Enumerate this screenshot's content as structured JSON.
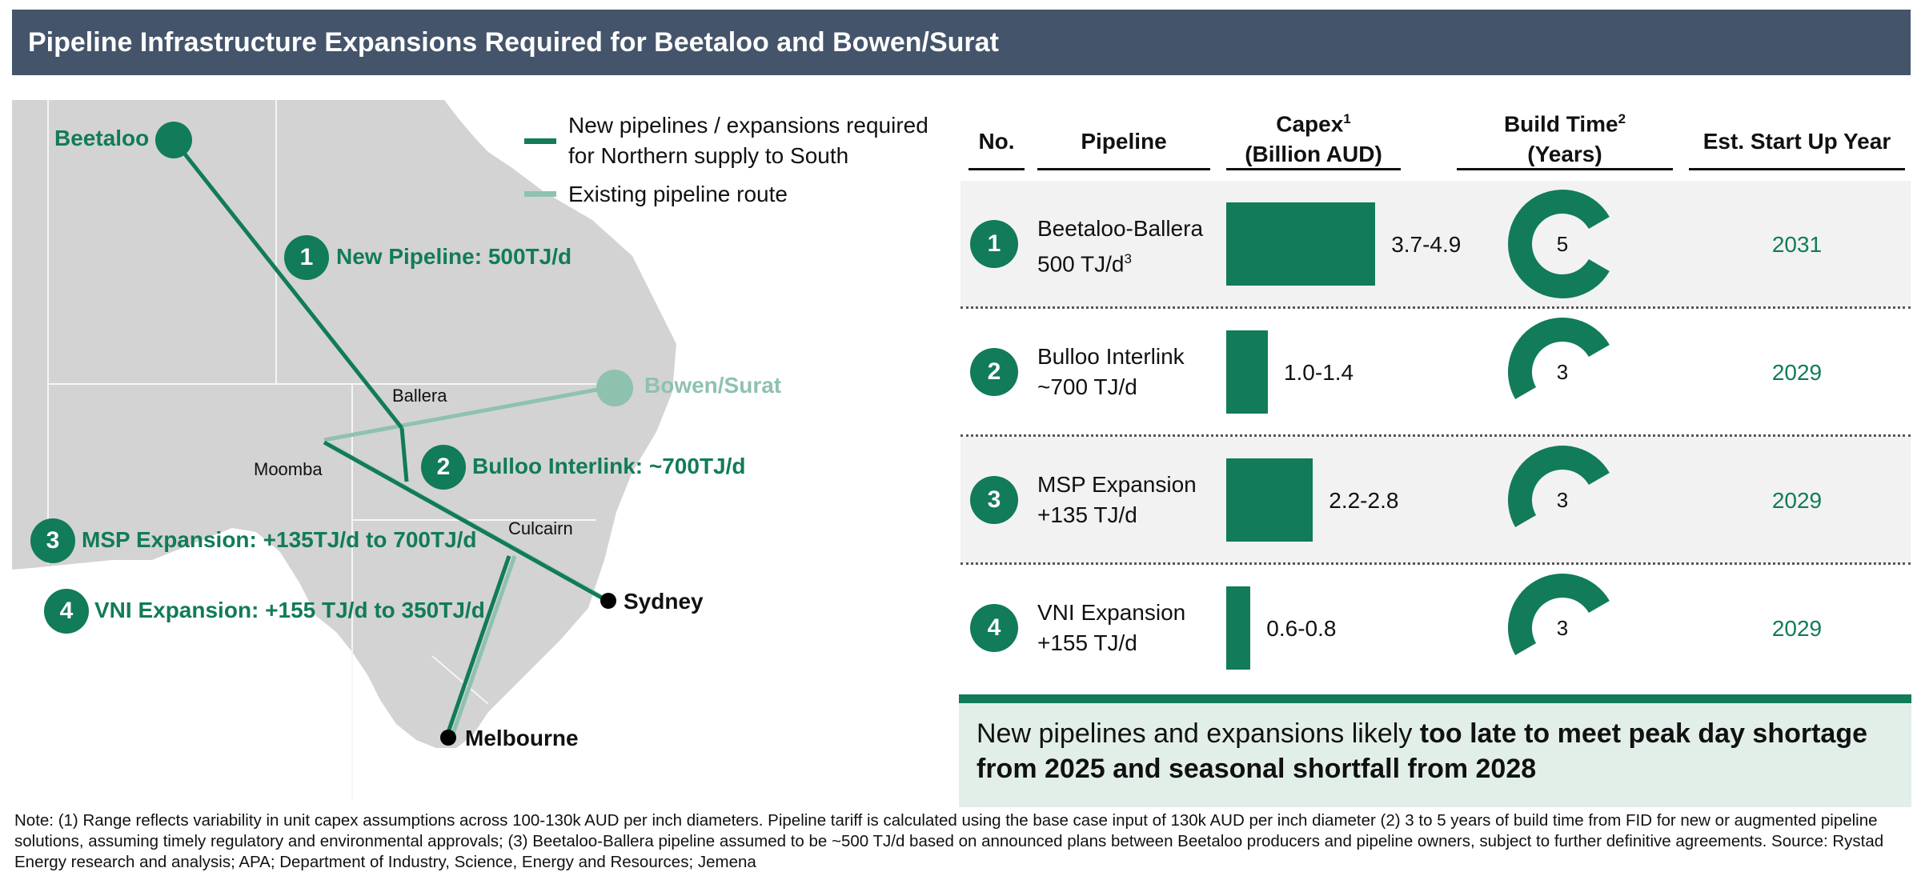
{
  "title": "Pipeline Infrastructure Expansions Required for Beetaloo and Bowen/Surat",
  "legend": {
    "new": {
      "label_line1": "New pipelines / expansions required",
      "label_line2": "for Northern supply to South",
      "color": "#117b5a"
    },
    "existing": {
      "label": "Existing pipeline route",
      "color": "#8fc2ae"
    }
  },
  "map": {
    "labels": {
      "beetaloo": "Beetaloo",
      "bowen_surat": "Bowen/Surat",
      "ballera": "Ballera",
      "moomba": "Moomba",
      "culcairn": "Culcairn",
      "sydney": "Sydney",
      "melbourne": "Melbourne"
    },
    "projects": [
      {
        "num": "1",
        "label": "New Pipeline: 500TJ/d"
      },
      {
        "num": "2",
        "label": "Bulloo Interlink: ~700TJ/d"
      },
      {
        "num": "3",
        "label": "MSP Expansion: +135TJ/d to 700TJ/d"
      },
      {
        "num": "4",
        "label": "VNI Expansion: +155 TJ/d to 350TJ/d"
      }
    ]
  },
  "table": {
    "headers": {
      "no": "No.",
      "pipeline": "Pipeline",
      "capex_line1": "Capex",
      "capex_sup": "1",
      "capex_line2": "(Billion AUD)",
      "build_line1": "Build Time",
      "build_sup": "2",
      "build_line2": "(Years)",
      "startup": "Est. Start Up Year"
    },
    "rows": [
      {
        "num": "1",
        "name_line1": "Beetaloo-Ballera",
        "name_line2": "500 TJ/d",
        "name_sup": "3",
        "capex": "3.7-4.9",
        "capex_mid": 4.3,
        "build_years": "5",
        "build_value": 5,
        "start_year": "2031"
      },
      {
        "num": "2",
        "name_line1": "Bulloo Interlink",
        "name_line2": "~700 TJ/d",
        "name_sup": "",
        "capex": "1.0-1.4",
        "capex_mid": 1.2,
        "build_years": "3",
        "build_value": 3,
        "start_year": "2029"
      },
      {
        "num": "3",
        "name_line1": "MSP Expansion",
        "name_line2": "+135 TJ/d",
        "name_sup": "",
        "capex": "2.2-2.8",
        "capex_mid": 2.5,
        "build_years": "3",
        "build_value": 3,
        "start_year": "2029"
      },
      {
        "num": "4",
        "name_line1": "VNI Expansion",
        "name_line2": "+155 TJ/d",
        "name_sup": "",
        "capex": "0.6-0.8",
        "capex_mid": 0.7,
        "build_years": "3",
        "build_value": 3,
        "start_year": "2029"
      }
    ]
  },
  "callout": {
    "plain": "New pipelines and expansions likely ",
    "bold": "too late to meet peak day shortage from 2025 and seasonal shortfall from 2028"
  },
  "note": "Note: (1) Range reflects variability in unit capex assumptions across 100-130k AUD per inch diameters. Pipeline tariff is calculated using the base case input of 130k AUD per inch diameter (2) 3 to 5 years of build time from FID for new or augmented pipeline solutions, assuming timely regulatory and environmental approvals; (3) Beetaloo-Ballera pipeline assumed to be ~500 TJ/d based on announced plans between Beetaloo producers and pipeline owners, subject to further definitive agreements. Source: Rystad Energy research and analysis; APA; Department of Industry, Science, Energy and Resources; Jemena",
  "colors": {
    "accent": "#117b5a",
    "existing": "#8fc2ae",
    "header": "#44546a",
    "land": "#d3d3d3"
  }
}
